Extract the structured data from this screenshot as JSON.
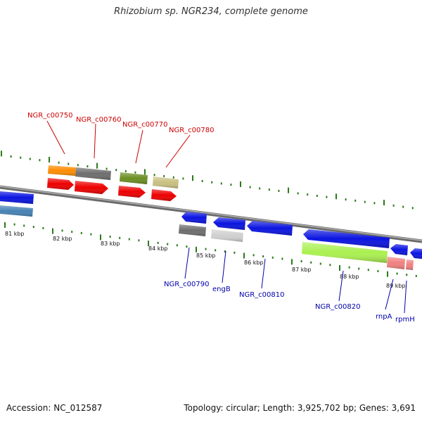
{
  "title": "Rhizobium sp. NGR234, complete genome",
  "footer": {
    "accession": "Accession: NC_012587",
    "topology": "Topology: circular; Length: 3,925,702 bp; Genes: 3,691"
  },
  "kbp_labels": [
    "81 kbp",
    "82 kbp",
    "83 kbp",
    "84 kbp",
    "85 kbp",
    "86 kbp",
    "87 kbp",
    "88 kbp",
    "89 kbp"
  ],
  "gene_labels_top": [
    "NGR_c00750",
    "NGR_c00760",
    "NGR_c00770",
    "NGR_c00780"
  ],
  "gene_labels_bottom": [
    "NGR_c00790",
    "engB",
    "NGR_c00810",
    "NGR_c00820",
    "rnpA",
    "rpmH"
  ],
  "colors": {
    "top_label": "#cc0000",
    "bottom_label": "#0000aa",
    "tick": "#2a7a1a",
    "backbone": "#8a8a8a",
    "gene_red": "#ee0000",
    "gene_blue": "#0a14e0",
    "orange": "#ff8c00",
    "grey": "#6e6e6e",
    "olive": "#6b8e23",
    "khaki": "#c8c080",
    "lightgrey": "#d0d0d0",
    "lime": "#aaf050",
    "salmon": "#f08080",
    "steelblue": "#4682b4"
  }
}
